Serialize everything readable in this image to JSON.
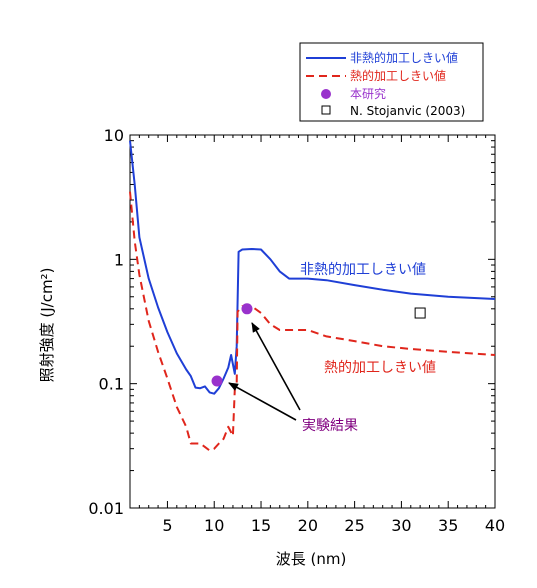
{
  "chart_data": {
    "type": "line",
    "xlabel": "波長 (nm)",
    "ylabel": "照射強度 (J/cm²)",
    "xlim": [
      1,
      40
    ],
    "ylim": [
      0.01,
      10
    ],
    "y_scale": "log",
    "x_ticks": [
      5,
      10,
      15,
      20,
      25,
      30,
      35,
      40
    ],
    "y_ticks": [
      {
        "value": 10,
        "label": "10"
      },
      {
        "value": 1,
        "label": "1"
      },
      {
        "value": 0.1,
        "label": "0.1"
      },
      {
        "value": 0.01,
        "label": "0.01"
      }
    ],
    "legend_position": "top-right",
    "series": [
      {
        "name": "非熱的加工しきい値",
        "style": "solid",
        "color": "#1f3fd6",
        "x": [
          1,
          1.5,
          2,
          3,
          4,
          5,
          6,
          7,
          7.5,
          8,
          8.5,
          9,
          9.5,
          10,
          10.5,
          11,
          11.5,
          11.8,
          12.2,
          12.4,
          12.6,
          13,
          14,
          15,
          16,
          17,
          18,
          20,
          22,
          25,
          28,
          31,
          35,
          40
        ],
        "y": [
          9.0,
          4.0,
          1.5,
          0.7,
          0.41,
          0.26,
          0.175,
          0.13,
          0.115,
          0.093,
          0.092,
          0.095,
          0.085,
          0.083,
          0.092,
          0.11,
          0.135,
          0.17,
          0.12,
          0.2,
          1.15,
          1.2,
          1.21,
          1.2,
          1.0,
          0.8,
          0.7,
          0.7,
          0.68,
          0.62,
          0.57,
          0.53,
          0.5,
          0.48
        ]
      },
      {
        "name": "熱的加工しきい値",
        "style": "dashed",
        "color": "#e0261c",
        "x": [
          1,
          1.5,
          2,
          3,
          4,
          5,
          6,
          7,
          7.5,
          8,
          8.5,
          9,
          9.5,
          10,
          10.5,
          11,
          11.5,
          12,
          12.2,
          12.4,
          12.5,
          13,
          14,
          15,
          16,
          17,
          18,
          20,
          22,
          25,
          28,
          31,
          35,
          40
        ],
        "y": [
          3.5,
          1.4,
          0.75,
          0.32,
          0.18,
          0.11,
          0.065,
          0.045,
          0.033,
          0.033,
          0.033,
          0.031,
          0.029,
          0.03,
          0.033,
          0.036,
          0.045,
          0.038,
          0.09,
          0.1,
          0.38,
          0.42,
          0.42,
          0.37,
          0.3,
          0.27,
          0.27,
          0.27,
          0.24,
          0.22,
          0.2,
          0.19,
          0.18,
          0.17
        ]
      }
    ],
    "markers": [
      {
        "name": "本研究",
        "shape": "circle",
        "color": "#9932cc",
        "points": [
          {
            "x": 10.3,
            "y": 0.105
          },
          {
            "x": 13.5,
            "y": 0.4
          }
        ]
      },
      {
        "name": "N. Stojanvic (2003)",
        "shape": "open-square",
        "color": "#000000",
        "points": [
          {
            "x": 32,
            "y": 0.37
          }
        ]
      }
    ],
    "annotations": [
      {
        "text": "非熱的加工しきい値",
        "color": "#1f3fd6"
      },
      {
        "text": "熱的加工しきい値",
        "color": "#e0261c"
      },
      {
        "text": "実験結果",
        "color": "#800080"
      }
    ]
  }
}
